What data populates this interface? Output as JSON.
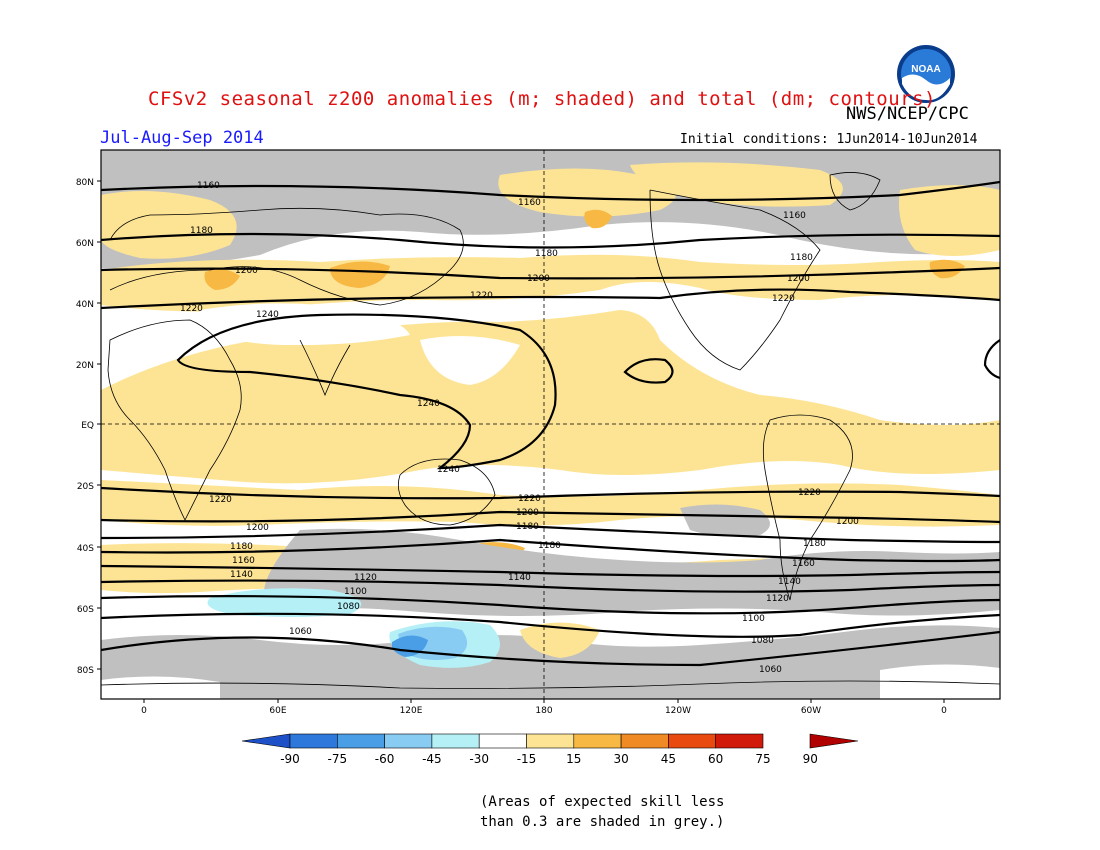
{
  "header": {
    "title": "CFSv2 seasonal z200 anomalies (m; shaded) and total (dm; contours)",
    "agency": "NWS/NCEP/CPC",
    "period": "Jul-Aug-Sep 2014",
    "initial_conditions": "Initial conditions: 1Jun2014-10Jun2014",
    "logo_text": "NOAA"
  },
  "map": {
    "lat_labels": [
      "80N",
      "60N",
      "40N",
      "20N",
      "EQ",
      "20S",
      "40S",
      "60S",
      "80S"
    ],
    "lon_labels": [
      "0",
      "60E",
      "120E",
      "180",
      "120W",
      "60W",
      "0"
    ],
    "contour_labels": [
      "1060",
      "1080",
      "1100",
      "1120",
      "1140",
      "1160",
      "1180",
      "1200",
      "1220",
      "1240"
    ],
    "colors": {
      "grey_low_skill": "#c0c0c0",
      "pos_15_30": "#fde495",
      "pos_30_45": "#f8b844",
      "neg_15_30": "#b4f0f6",
      "neg_30_45": "#88ccf4",
      "neg_45_60": "#4a9ee6"
    }
  },
  "colorbar": {
    "labels": [
      "-90",
      "-75",
      "-60",
      "-45",
      "-30",
      "-15",
      "15",
      "30",
      "45",
      "60",
      "75",
      "90"
    ],
    "colors": [
      "#1e50c8",
      "#2e78dc",
      "#4a9ee6",
      "#88ccf4",
      "#b4f0f6",
      "#ffffff",
      "#fde495",
      "#f8b844",
      "#ef8a24",
      "#e84a10",
      "#d21a0a",
      "#b00000"
    ]
  },
  "note": {
    "line1": "(Areas of expected skill less",
    "line2": "than 0.3 are shaded in grey.)"
  }
}
